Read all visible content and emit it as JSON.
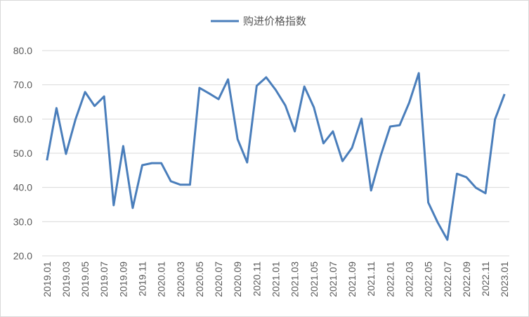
{
  "chart_data": {
    "type": "line",
    "categories": [
      "2019.01",
      null,
      "2019.03",
      null,
      "2019.05",
      null,
      "2019.07",
      null,
      "2019.09",
      null,
      "2019.11",
      null,
      "2020.01",
      null,
      "2020.03",
      null,
      "2020.05",
      null,
      "2020.07",
      null,
      "2020.09",
      null,
      "2020.11",
      null,
      "2021.01",
      null,
      "2021.03",
      null,
      "2021.05",
      null,
      "2021.07",
      null,
      "2021.09",
      null,
      "2021.11",
      null,
      "2022.01",
      null,
      "2022.03",
      null,
      "2022.05",
      null,
      "2022.07",
      null,
      "2022.09",
      null,
      "2022.11",
      null,
      "2023.01"
    ],
    "series": [
      {
        "name": "购进价格指数",
        "color": "#4a7ebb",
        "values": [
          47.9,
          63.2,
          49.8,
          59.9,
          67.9,
          63.8,
          66.6,
          34.8,
          52.1,
          34.0,
          46.5,
          47.1,
          47.1,
          41.8,
          40.8,
          40.8,
          69.1,
          67.5,
          65.8,
          71.6,
          54.1,
          47.3,
          69.7,
          72.2,
          68.5,
          64.0,
          56.4,
          69.5,
          63.4,
          52.9,
          56.4,
          47.7,
          51.6,
          60.1,
          39.1,
          49.2,
          57.8,
          58.2,
          64.8,
          73.4,
          35.6,
          29.7,
          24.7,
          44.0,
          43.0,
          39.9,
          38.3,
          59.9,
          67.3
        ]
      }
    ],
    "ylim": [
      20,
      80
    ],
    "yticks": [
      {
        "value": 20,
        "label": "20.0"
      },
      {
        "value": 30,
        "label": "30.0"
      },
      {
        "value": 40,
        "label": "40.0"
      },
      {
        "value": 50,
        "label": "50.0"
      },
      {
        "value": 60,
        "label": "60.0"
      },
      {
        "value": 70,
        "label": "70.0"
      },
      {
        "value": 80,
        "label": "80.0"
      }
    ],
    "grid": true,
    "legend": "top"
  }
}
